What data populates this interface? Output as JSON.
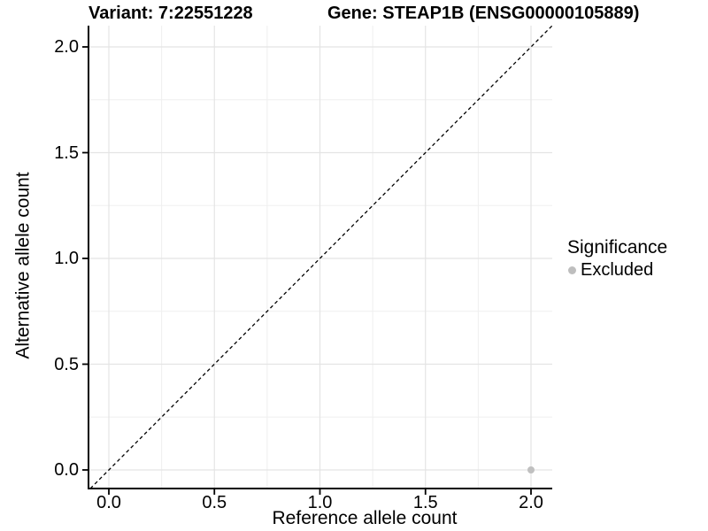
{
  "header": {
    "title_left": "Variant: 7:22551228",
    "title_right": "Gene: STEAP1B (ENSG00000105889)"
  },
  "chart_data": {
    "type": "scatter",
    "xlabel": "Reference allele count",
    "ylabel": "Alternative allele count",
    "xlim": [
      -0.1,
      2.1
    ],
    "ylim": [
      -0.09,
      2.1
    ],
    "xticks": {
      "values": [
        0,
        0.5,
        1,
        1.5,
        2
      ],
      "labels": [
        "0.0",
        "0.5",
        "1.0",
        "1.5",
        "2.0"
      ]
    },
    "yticks": {
      "values": [
        0,
        0.5,
        1,
        1.5,
        2
      ],
      "labels": [
        "0.0",
        "0.5",
        "1.0",
        "1.5",
        "2.0"
      ]
    },
    "minor_breaks_x": [
      0.25,
      0.75,
      1.25,
      1.75
    ],
    "minor_breaks_y": [
      0.25,
      0.75,
      1.25,
      1.75
    ],
    "grid": "major+minor",
    "reference_line": {
      "type": "identity",
      "slope": 1,
      "intercept": 0,
      "style": "dashed",
      "color": "#000000"
    },
    "series": [
      {
        "name": "Excluded",
        "color": "#c0c0c0",
        "points": [
          {
            "x": 2.0,
            "y": 0.0
          }
        ]
      }
    ],
    "legend": {
      "title": "Significance",
      "position": "right",
      "entries": [
        {
          "label": "Excluded",
          "color": "#bebebe"
        }
      ]
    }
  },
  "colors": {
    "background": "#ffffff",
    "axis_line": "#000000",
    "tick_mark": "#000000",
    "text": "#000000",
    "grid_major": "#e4e4e4",
    "grid_minor": "#efefef"
  }
}
